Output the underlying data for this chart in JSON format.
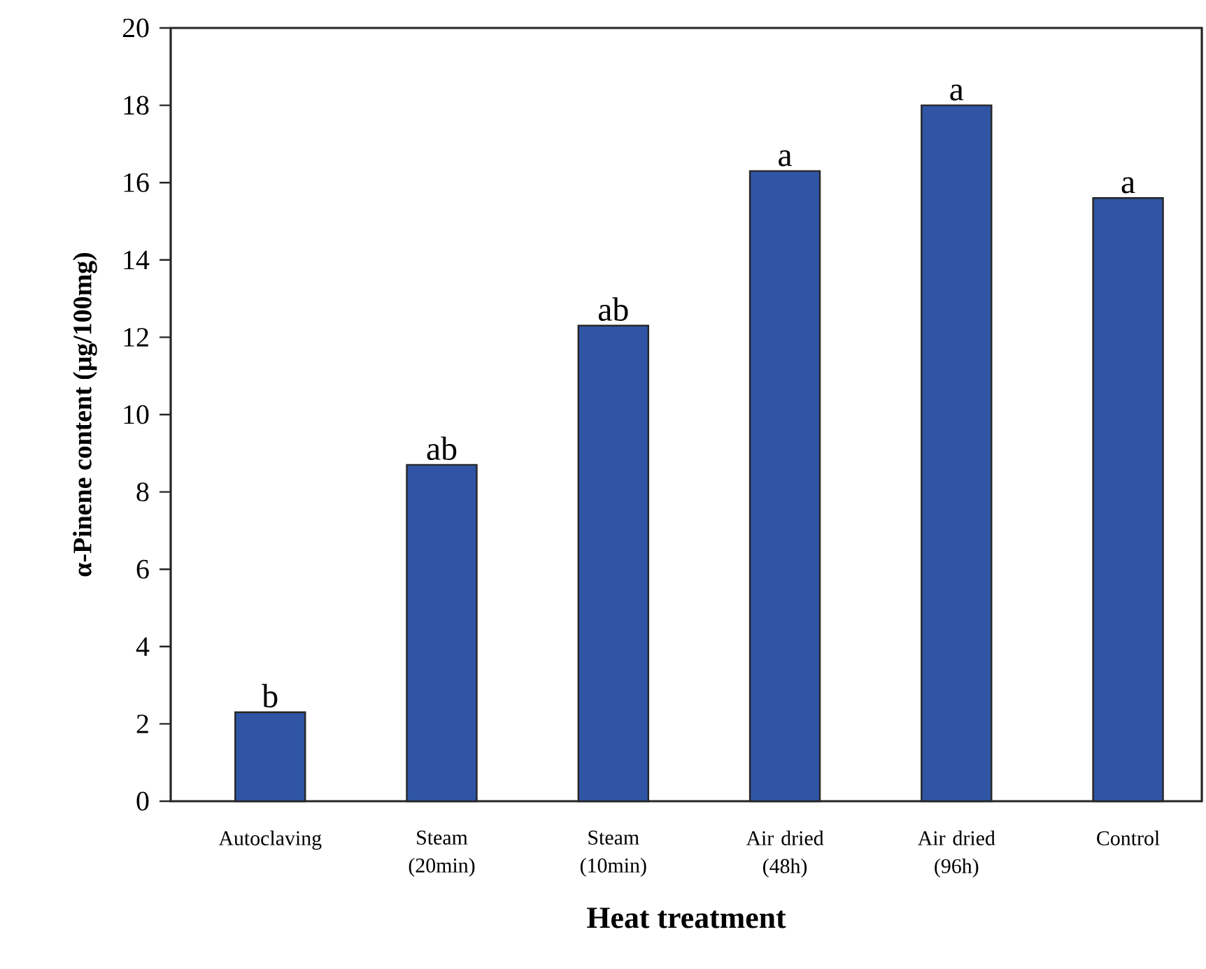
{
  "chart_data": {
    "type": "bar",
    "xlabel": "Heat treatment",
    "ylabel": "α-Pinene content (μg/100mg)",
    "categories": [
      "Autoclaving",
      "Steam (20min)",
      "Steam (10min)",
      "Air dried (48h)",
      "Air dried (96h)",
      "Control"
    ],
    "values": [
      2.3,
      8.7,
      12.3,
      16.3,
      18.0,
      15.6
    ],
    "color": "#2f55a4",
    "ylim": [
      0,
      20
    ],
    "yticks": [
      0,
      2,
      4,
      6,
      8,
      10,
      12,
      14,
      16,
      18,
      20
    ],
    "annotations": [
      {
        "text": "b",
        "x": "Autoclaving",
        "y": 2.3
      },
      {
        "text": "ab",
        "x": "Steam (20min)",
        "y": 8.7
      },
      {
        "text": "ab",
        "x": "Steam (10min)",
        "y": 12.3
      },
      {
        "text": "a",
        "x": "Air dried (48h)",
        "y": 16.3
      },
      {
        "text": "a",
        "x": "Air dried (96h)",
        "y": 18.0
      },
      {
        "text": "a",
        "x": "Control",
        "y": 15.6
      }
    ]
  }
}
